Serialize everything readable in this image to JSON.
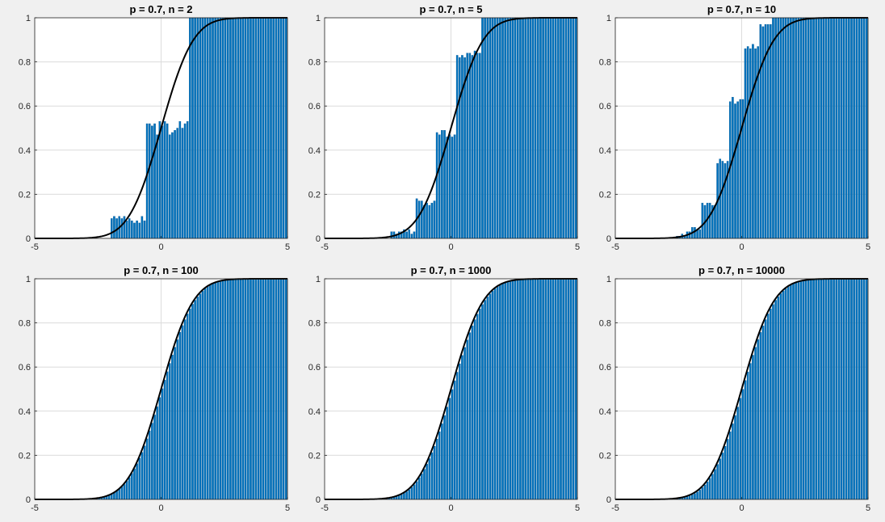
{
  "figure": {
    "background": "#f0f0f0",
    "bar_color": "#0072bd",
    "bar_edge": "#0a5a94",
    "curve_color": "#000000"
  },
  "chart_data": [
    {
      "type": "bar",
      "title": "p = 0.7, n = 2",
      "xlim": [
        -5,
        5
      ],
      "ylim": [
        0,
        1
      ],
      "xticks": [
        "-5",
        "0",
        "5"
      ],
      "yticks": [
        "0",
        "0.2",
        "0.4",
        "0.6",
        "0.8",
        "1"
      ],
      "grid": true,
      "bins": {
        "start": -2.0,
        "width": 0.1
      },
      "series": [
        {
          "type": "bar",
          "values": [
            0.09,
            0.1,
            0.09,
            0.1,
            0.09,
            0.1,
            0.08,
            0.09,
            0.08,
            0.07,
            0.08,
            0.07,
            0.1,
            0.08,
            0.52,
            0.52,
            0.51,
            0.52,
            0.47,
            0.53,
            0.51,
            0.53,
            0.52,
            0.47,
            0.48,
            0.49,
            0.5,
            0.53,
            0.5,
            0.52,
            0.53,
            1.0,
            1.0,
            1.0,
            1.0,
            1.0,
            1.0,
            1.0,
            1.0,
            1.0,
            1.0,
            1.0,
            1.0,
            1.0,
            1.0,
            1.0,
            1.0,
            1.0,
            1.0,
            1.0,
            1.0,
            1.0,
            1.0,
            1.0,
            1.0,
            1.0,
            1.0,
            1.0,
            1.0,
            1.0,
            1.0,
            1.0,
            1.0,
            1.0,
            1.0,
            1.0,
            1.0,
            1.0,
            1.0,
            1.0
          ]
        },
        {
          "type": "line",
          "function": "normal-cdf",
          "mean": 0,
          "sd": 1
        }
      ]
    },
    {
      "type": "bar",
      "title": "p = 0.7, n = 5",
      "xlim": [
        -5,
        5
      ],
      "ylim": [
        0,
        1
      ],
      "xticks": [
        "-5",
        "0",
        "5"
      ],
      "yticks": [
        "0",
        "0.2",
        "0.4",
        "0.6",
        "0.8",
        "1"
      ],
      "grid": true,
      "bins": {
        "start": -2.4,
        "width": 0.1
      },
      "series": [
        {
          "type": "bar",
          "values": [
            0.03,
            0.03,
            0.02,
            0.03,
            0.03,
            0.04,
            0.03,
            0.04,
            0.02,
            0.03,
            0.18,
            0.17,
            0.17,
            0.15,
            0.16,
            0.15,
            0.16,
            0.17,
            0.48,
            0.47,
            0.49,
            0.49,
            0.46,
            0.47,
            0.46,
            0.47,
            0.83,
            0.82,
            0.83,
            0.82,
            0.84,
            0.84,
            0.83,
            0.85,
            0.84,
            0.84,
            1.0,
            1.0,
            1.0,
            1.0,
            1.0,
            1.0,
            1.0,
            1.0,
            1.0,
            1.0,
            1.0,
            1.0,
            1.0,
            1.0,
            1.0,
            1.0,
            1.0,
            1.0,
            1.0,
            1.0,
            1.0,
            1.0,
            1.0,
            1.0,
            1.0,
            1.0,
            1.0,
            1.0,
            1.0,
            1.0,
            1.0,
            1.0,
            1.0,
            1.0,
            1.0,
            1.0,
            1.0,
            1.0
          ]
        },
        {
          "type": "line",
          "function": "normal-cdf",
          "mean": 0,
          "sd": 1
        }
      ]
    },
    {
      "type": "bar",
      "title": "p = 0.7, n = 10",
      "xlim": [
        -5,
        5
      ],
      "ylim": [
        0,
        1
      ],
      "xticks": [
        "-5",
        "0",
        "5"
      ],
      "yticks": [
        "0",
        "0.2",
        "0.4",
        "0.6",
        "0.8",
        "1"
      ],
      "grid": true,
      "bins": {
        "start": -2.6,
        "width": 0.1
      },
      "series": [
        {
          "type": "bar",
          "values": [
            0.01,
            0.01,
            0.02,
            0.01,
            0.03,
            0.03,
            0.05,
            0.05,
            0.04,
            0.04,
            0.16,
            0.15,
            0.16,
            0.16,
            0.15,
            0.15,
            0.34,
            0.36,
            0.35,
            0.34,
            0.35,
            0.62,
            0.64,
            0.61,
            0.62,
            0.63,
            0.63,
            0.86,
            0.87,
            0.86,
            0.88,
            0.86,
            0.87,
            0.97,
            0.96,
            0.97,
            0.97,
            0.97,
            1.0,
            1.0,
            1.0,
            1.0,
            1.0,
            1.0,
            1.0,
            1.0,
            1.0,
            1.0,
            1.0,
            1.0,
            1.0,
            1.0,
            1.0,
            1.0,
            1.0,
            1.0,
            1.0,
            1.0,
            1.0,
            1.0,
            1.0,
            1.0,
            1.0,
            1.0,
            1.0,
            1.0,
            1.0,
            1.0,
            1.0,
            1.0,
            1.0,
            1.0,
            1.0,
            1.0,
            1.0,
            1.0
          ]
        },
        {
          "type": "line",
          "function": "normal-cdf",
          "mean": 0,
          "sd": 1
        }
      ]
    },
    {
      "type": "bar",
      "title": "p = 0.7, n = 100",
      "xlim": [
        -5,
        5
      ],
      "ylim": [
        0,
        1
      ],
      "xticks": [
        "-5",
        "0",
        "5"
      ],
      "yticks": [
        "0",
        "0.2",
        "0.4",
        "0.6",
        "0.8",
        "1"
      ],
      "grid": true,
      "bins": {
        "start": -3.0,
        "width": 0.1
      },
      "series": [
        {
          "type": "bar",
          "values": [
            0.001,
            0.002,
            0.002,
            0.003,
            0.004,
            0.005,
            0.008,
            0.01,
            0.014,
            0.018,
            0.022,
            0.029,
            0.037,
            0.046,
            0.057,
            0.068,
            0.083,
            0.099,
            0.118,
            0.139,
            0.162,
            0.187,
            0.213,
            0.243,
            0.275,
            0.311,
            0.346,
            0.383,
            0.42,
            0.462,
            0.502,
            0.541,
            0.579,
            0.617,
            0.655,
            0.69,
            0.724,
            0.758,
            0.788,
            0.815,
            0.841,
            0.864,
            0.885,
            0.903,
            0.918,
            0.932,
            0.945,
            0.956,
            0.965,
            0.972,
            0.978,
            0.983,
            0.986,
            0.989,
            0.992,
            0.994,
            0.995,
            0.997,
            0.998,
            0.998,
            0.999,
            0.999,
            0.999,
            1.0,
            1.0,
            1.0,
            1.0,
            1.0,
            1.0,
            1.0,
            1.0,
            1.0,
            1.0,
            1.0,
            1.0,
            1.0,
            1.0,
            1.0,
            1.0,
            1.0
          ]
        },
        {
          "type": "line",
          "function": "normal-cdf",
          "mean": 0,
          "sd": 1
        }
      ]
    },
    {
      "type": "bar",
      "title": "p = 0.7, n = 1000",
      "xlim": [
        -5,
        5
      ],
      "ylim": [
        0,
        1
      ],
      "xticks": [
        "-5",
        "0",
        "5"
      ],
      "yticks": [
        "0",
        "0.2",
        "0.4",
        "0.6",
        "0.8",
        "1"
      ],
      "grid": true,
      "bins": {
        "start": -3.0,
        "width": 0.1
      },
      "series": [
        {
          "type": "bar",
          "values": [
            0.001,
            0.002,
            0.002,
            0.003,
            0.004,
            0.005,
            0.007,
            0.01,
            0.012,
            0.017,
            0.021,
            0.028,
            0.035,
            0.044,
            0.055,
            0.067,
            0.081,
            0.098,
            0.116,
            0.137,
            0.16,
            0.185,
            0.212,
            0.241,
            0.274,
            0.307,
            0.343,
            0.38,
            0.419,
            0.459,
            0.498,
            0.538,
            0.577,
            0.615,
            0.653,
            0.689,
            0.723,
            0.756,
            0.787,
            0.815,
            0.84,
            0.864,
            0.884,
            0.903,
            0.918,
            0.932,
            0.945,
            0.955,
            0.964,
            0.971,
            0.977,
            0.982,
            0.986,
            0.989,
            0.992,
            0.994,
            0.995,
            0.997,
            0.998,
            0.998,
            0.999,
            0.999,
            0.999,
            1.0,
            1.0,
            1.0,
            1.0,
            1.0,
            1.0,
            1.0,
            1.0,
            1.0,
            1.0,
            1.0,
            1.0,
            1.0,
            1.0,
            1.0,
            1.0,
            1.0
          ]
        },
        {
          "type": "line",
          "function": "normal-cdf",
          "mean": 0,
          "sd": 1
        }
      ]
    },
    {
      "type": "bar",
      "title": "p = 0.7, n = 10000",
      "xlim": [
        -5,
        5
      ],
      "ylim": [
        0,
        1
      ],
      "xticks": [
        "-5",
        "0",
        "5"
      ],
      "yticks": [
        "0",
        "0.2",
        "0.4",
        "0.6",
        "0.8",
        "1"
      ],
      "grid": true,
      "bins": {
        "start": -3.0,
        "width": 0.1
      },
      "series": [
        {
          "type": "bar",
          "values": [
            0.001,
            0.002,
            0.002,
            0.003,
            0.004,
            0.005,
            0.007,
            0.009,
            0.012,
            0.016,
            0.021,
            0.027,
            0.034,
            0.043,
            0.054,
            0.066,
            0.08,
            0.096,
            0.115,
            0.136,
            0.159,
            0.184,
            0.211,
            0.241,
            0.273,
            0.307,
            0.343,
            0.38,
            0.419,
            0.459,
            0.499,
            0.539,
            0.578,
            0.617,
            0.654,
            0.69,
            0.725,
            0.757,
            0.787,
            0.815,
            0.841,
            0.864,
            0.884,
            0.903,
            0.919,
            0.933,
            0.945,
            0.955,
            0.964,
            0.971,
            0.977,
            0.982,
            0.986,
            0.989,
            0.992,
            0.994,
            0.995,
            0.997,
            0.998,
            0.998,
            0.999,
            0.999,
            0.999,
            1.0,
            1.0,
            1.0,
            1.0,
            1.0,
            1.0,
            1.0,
            1.0,
            1.0,
            1.0,
            1.0,
            1.0,
            1.0,
            1.0,
            1.0,
            1.0,
            1.0
          ]
        },
        {
          "type": "line",
          "function": "normal-cdf",
          "mean": 0,
          "sd": 1
        }
      ]
    }
  ]
}
